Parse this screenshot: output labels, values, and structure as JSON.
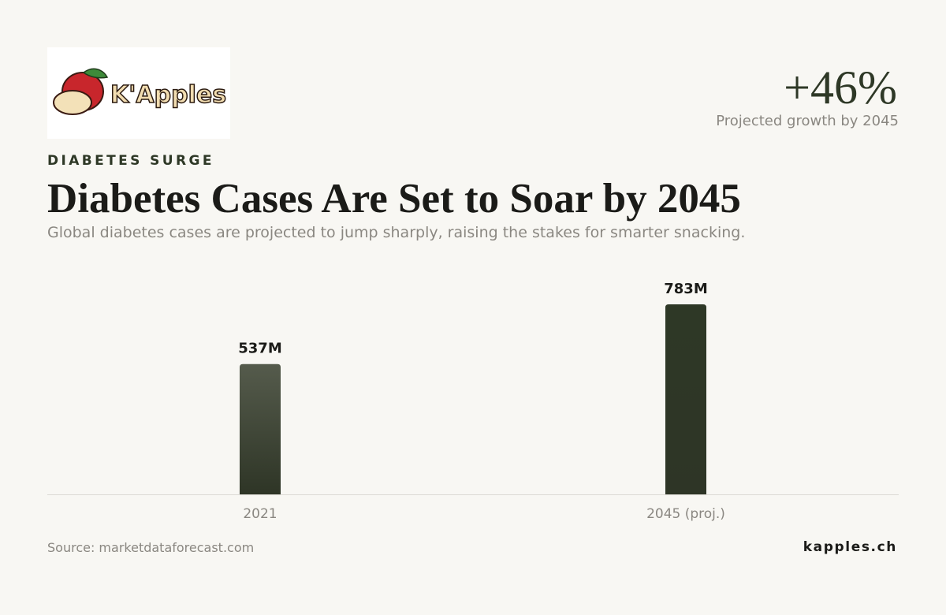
{
  "logo": {
    "text": "K'Apples"
  },
  "kpi": {
    "value": "+46%",
    "label": "Projected growth by 2045"
  },
  "eyebrow": "DIABETES SURGE",
  "chart_data": {
    "type": "bar",
    "title": "Diabetes Cases Are Set to Soar by 2045",
    "subtitle": "Global diabetes cases are projected to jump sharply, raising the stakes for smarter snacking.",
    "categories": [
      "2021",
      "2045 (proj.)"
    ],
    "values": [
      537,
      783
    ],
    "value_labels": [
      "537M",
      "783M"
    ],
    "colors": [
      "#555b4c",
      "#2e3826"
    ]
  },
  "footer": {
    "source": "Source: marketdataforecast.com",
    "site": "kapples.ch"
  }
}
